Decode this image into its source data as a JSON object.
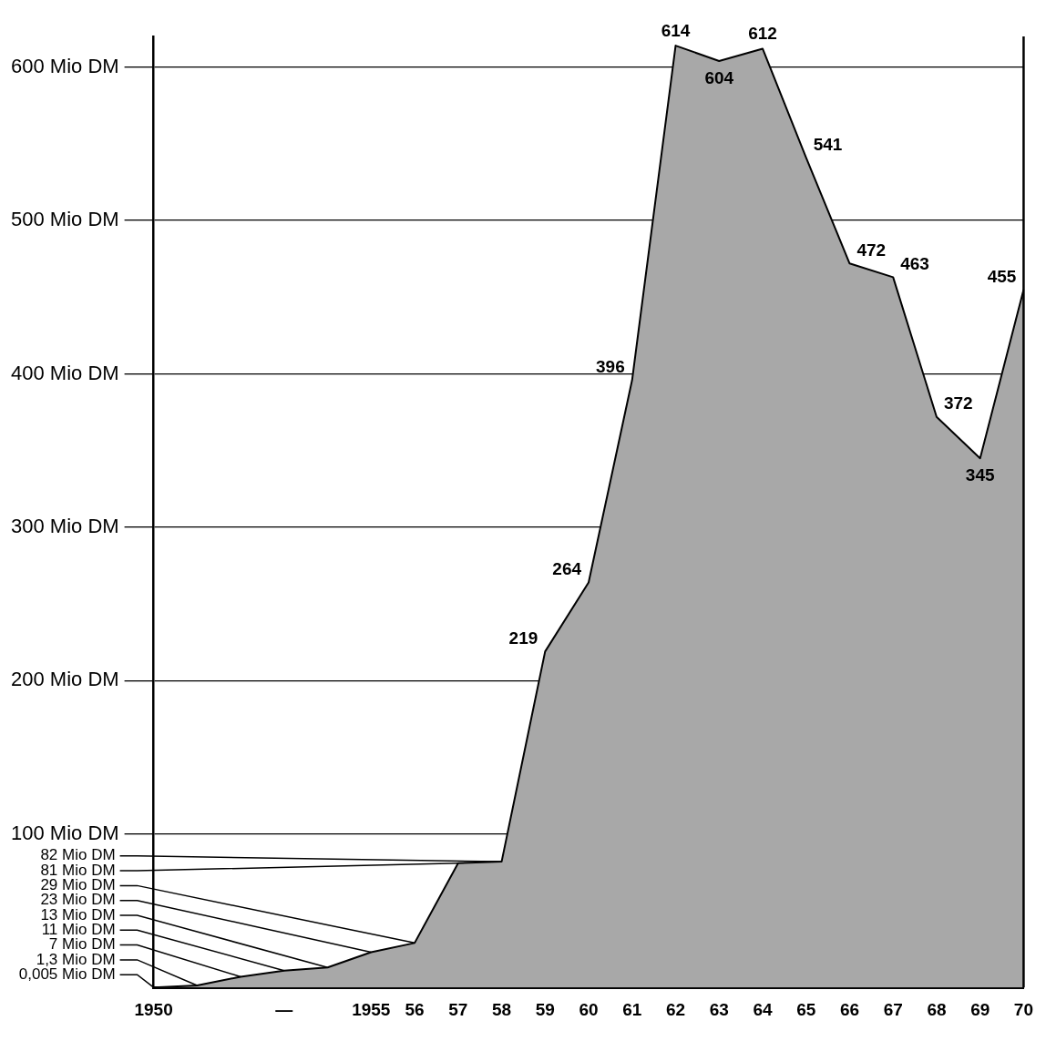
{
  "chart_data": {
    "type": "area",
    "categories": [
      "1950",
      null,
      null,
      "—",
      null,
      "1955",
      "56",
      "57",
      "58",
      "59",
      "60",
      "61",
      "62",
      "63",
      "64",
      "65",
      "66",
      "67",
      "68",
      "69",
      "70"
    ],
    "values": [
      0.005,
      1.3,
      7,
      11,
      13,
      23,
      29,
      81,
      82,
      219,
      264,
      396,
      614,
      604,
      612,
      541,
      472,
      463,
      372,
      345,
      455
    ],
    "value_labels": [
      "0,005 Mio DM",
      "1,3 Mio DM",
      "7 Mio DM",
      "11 Mio DM",
      "13 Mio DM",
      "23 Mio DM",
      "29 Mio DM",
      "81 Mio DM",
      "82 Mio DM",
      "219",
      "264",
      "396",
      "614",
      "604",
      "612",
      "541",
      "472",
      "463",
      "372",
      "345",
      "455"
    ],
    "color": "#a8a8a8",
    "ylim": [
      0,
      620
    ],
    "yticks": [
      {
        "value": 100,
        "label": "100 Mio DM"
      },
      {
        "value": 200,
        "label": "200 Mio DM"
      },
      {
        "value": 300,
        "label": "300 Mio DM"
      },
      {
        "value": 400,
        "label": "400 Mio DM"
      },
      {
        "value": 500,
        "label": "500 Mio DM"
      },
      {
        "value": 600,
        "label": "600 Mio DM"
      }
    ],
    "grid": "y"
  }
}
